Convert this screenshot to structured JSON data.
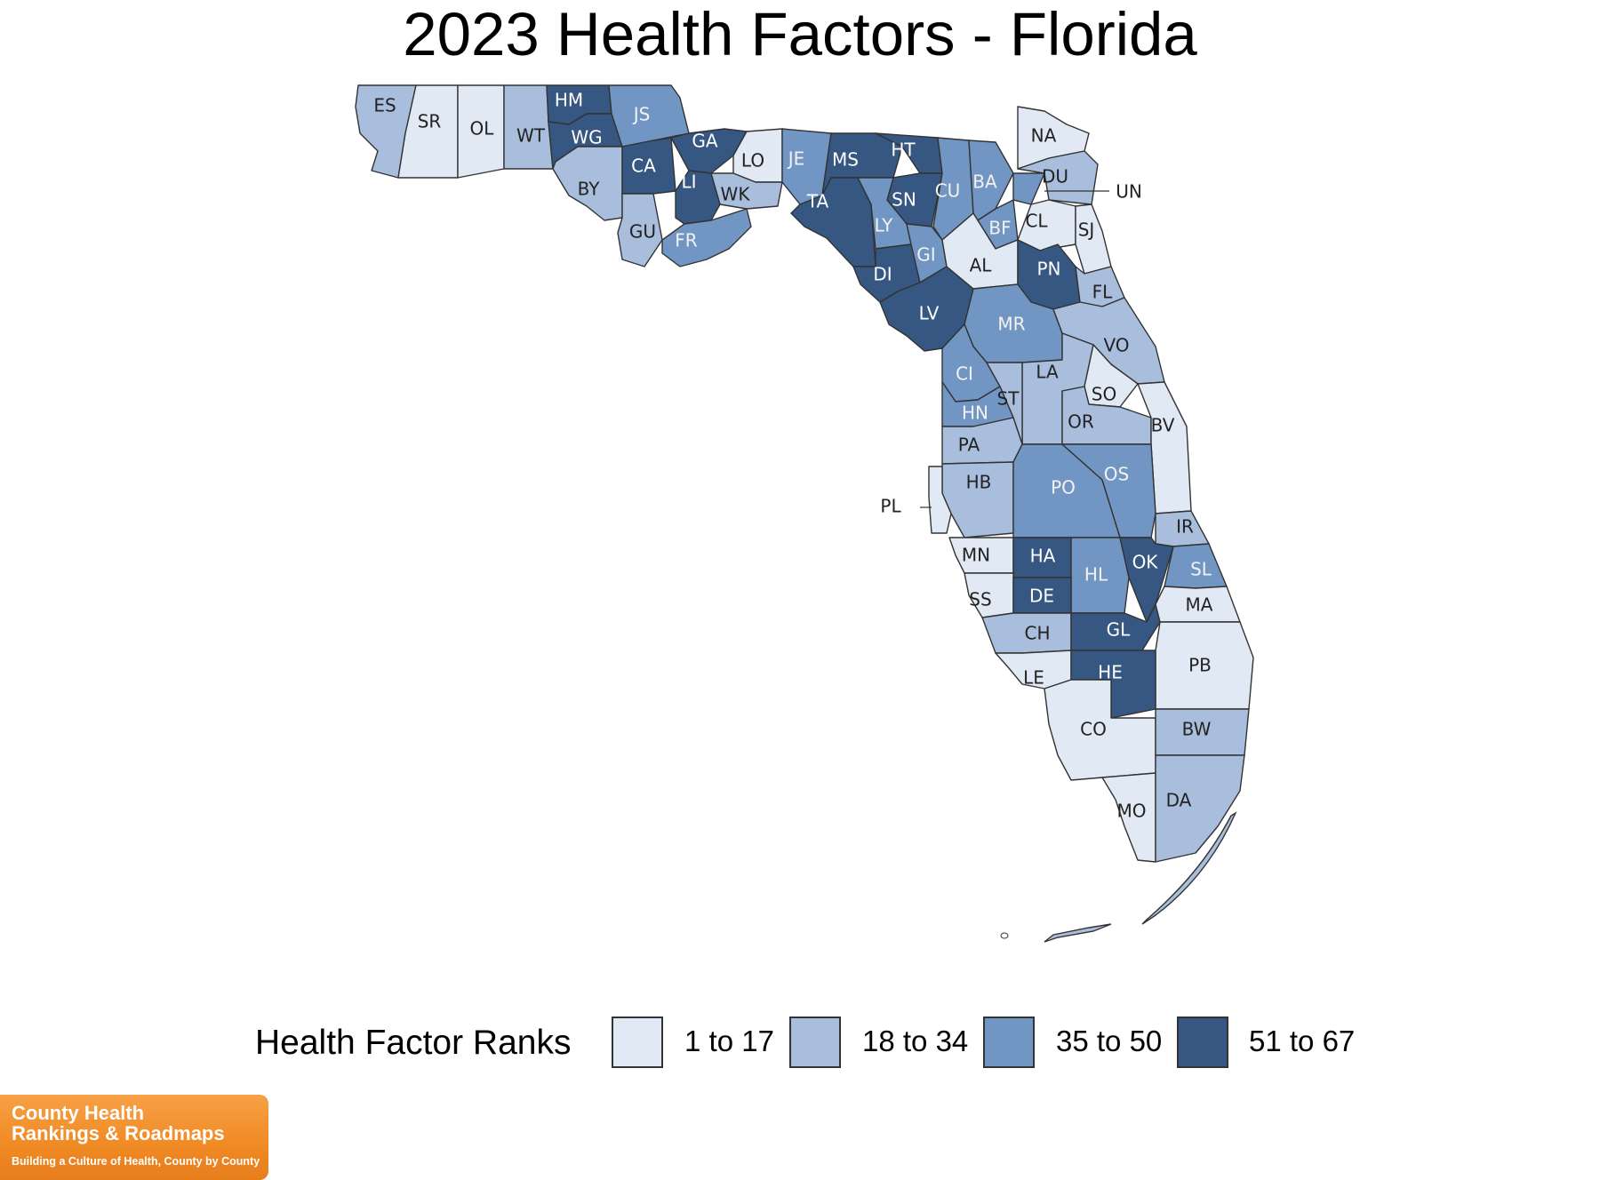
{
  "title": "2023 Health Factors - Florida",
  "colors": {
    "tier1": "#e1e9f4",
    "tier2": "#a9bedc",
    "tier3": "#7296c4",
    "tier4": "#365781",
    "border": "#333333"
  },
  "legend": {
    "title": "Health Factor Ranks",
    "items": [
      {
        "label": "1 to 17",
        "tier": 1
      },
      {
        "label": "18 to 34",
        "tier": 2
      },
      {
        "label": "35 to 50",
        "tier": 3
      },
      {
        "label": "51 to 67",
        "tier": 4
      }
    ]
  },
  "counties": [
    {
      "abbr": "ES",
      "tier": 2
    },
    {
      "abbr": "SR",
      "tier": 1
    },
    {
      "abbr": "OL",
      "tier": 1
    },
    {
      "abbr": "WT",
      "tier": 2
    },
    {
      "abbr": "HM",
      "tier": 4
    },
    {
      "abbr": "WG",
      "tier": 4
    },
    {
      "abbr": "JS",
      "tier": 3
    },
    {
      "abbr": "BY",
      "tier": 2
    },
    {
      "abbr": "CA",
      "tier": 4
    },
    {
      "abbr": "GU",
      "tier": 2
    },
    {
      "abbr": "GA",
      "tier": 4
    },
    {
      "abbr": "LI",
      "tier": 4
    },
    {
      "abbr": "FR",
      "tier": 3
    },
    {
      "abbr": "LO",
      "tier": 1
    },
    {
      "abbr": "WK",
      "tier": 2
    },
    {
      "abbr": "JE",
      "tier": 3
    },
    {
      "abbr": "MS",
      "tier": 4
    },
    {
      "abbr": "TA",
      "tier": 4
    },
    {
      "abbr": "HT",
      "tier": 4
    },
    {
      "abbr": "SN",
      "tier": 4
    },
    {
      "abbr": "LY",
      "tier": 3
    },
    {
      "abbr": "DI",
      "tier": 4
    },
    {
      "abbr": "CU",
      "tier": 3
    },
    {
      "abbr": "GI",
      "tier": 3
    },
    {
      "abbr": "LV",
      "tier": 4
    },
    {
      "abbr": "BA",
      "tier": 3
    },
    {
      "abbr": "BF",
      "tier": 3
    },
    {
      "abbr": "UN",
      "tier": 3
    },
    {
      "abbr": "NA",
      "tier": 1
    },
    {
      "abbr": "DU",
      "tier": 2
    },
    {
      "abbr": "CL",
      "tier": 1
    },
    {
      "abbr": "SJ",
      "tier": 1
    },
    {
      "abbr": "AL",
      "tier": 1
    },
    {
      "abbr": "PN",
      "tier": 4
    },
    {
      "abbr": "FL",
      "tier": 2
    },
    {
      "abbr": "MR",
      "tier": 3
    },
    {
      "abbr": "VO",
      "tier": 2
    },
    {
      "abbr": "CI",
      "tier": 3
    },
    {
      "abbr": "LA",
      "tier": 2
    },
    {
      "abbr": "ST",
      "tier": 2
    },
    {
      "abbr": "SO",
      "tier": 1
    },
    {
      "abbr": "HN",
      "tier": 3
    },
    {
      "abbr": "OR",
      "tier": 2
    },
    {
      "abbr": "BV",
      "tier": 1
    },
    {
      "abbr": "PA",
      "tier": 2
    },
    {
      "abbr": "HB",
      "tier": 2
    },
    {
      "abbr": "PO",
      "tier": 3
    },
    {
      "abbr": "OS",
      "tier": 3
    },
    {
      "abbr": "PL",
      "tier": 1
    },
    {
      "abbr": "IR",
      "tier": 2
    },
    {
      "abbr": "MN",
      "tier": 1
    },
    {
      "abbr": "HA",
      "tier": 4
    },
    {
      "abbr": "HL",
      "tier": 3
    },
    {
      "abbr": "OK",
      "tier": 4
    },
    {
      "abbr": "SL",
      "tier": 3
    },
    {
      "abbr": "SS",
      "tier": 1
    },
    {
      "abbr": "DE",
      "tier": 4
    },
    {
      "abbr": "CH",
      "tier": 2
    },
    {
      "abbr": "GL",
      "tier": 4
    },
    {
      "abbr": "MA",
      "tier": 1
    },
    {
      "abbr": "PB",
      "tier": 1
    },
    {
      "abbr": "LE",
      "tier": 1
    },
    {
      "abbr": "HE",
      "tier": 4
    },
    {
      "abbr": "CO",
      "tier": 1
    },
    {
      "abbr": "BW",
      "tier": 2
    },
    {
      "abbr": "MO",
      "tier": 1
    },
    {
      "abbr": "DA",
      "tier": 2
    }
  ],
  "logo": {
    "line1": "County Health",
    "line2": "Rankings & Roadmaps",
    "tagline": "Building a Culture of Health, County by County"
  }
}
